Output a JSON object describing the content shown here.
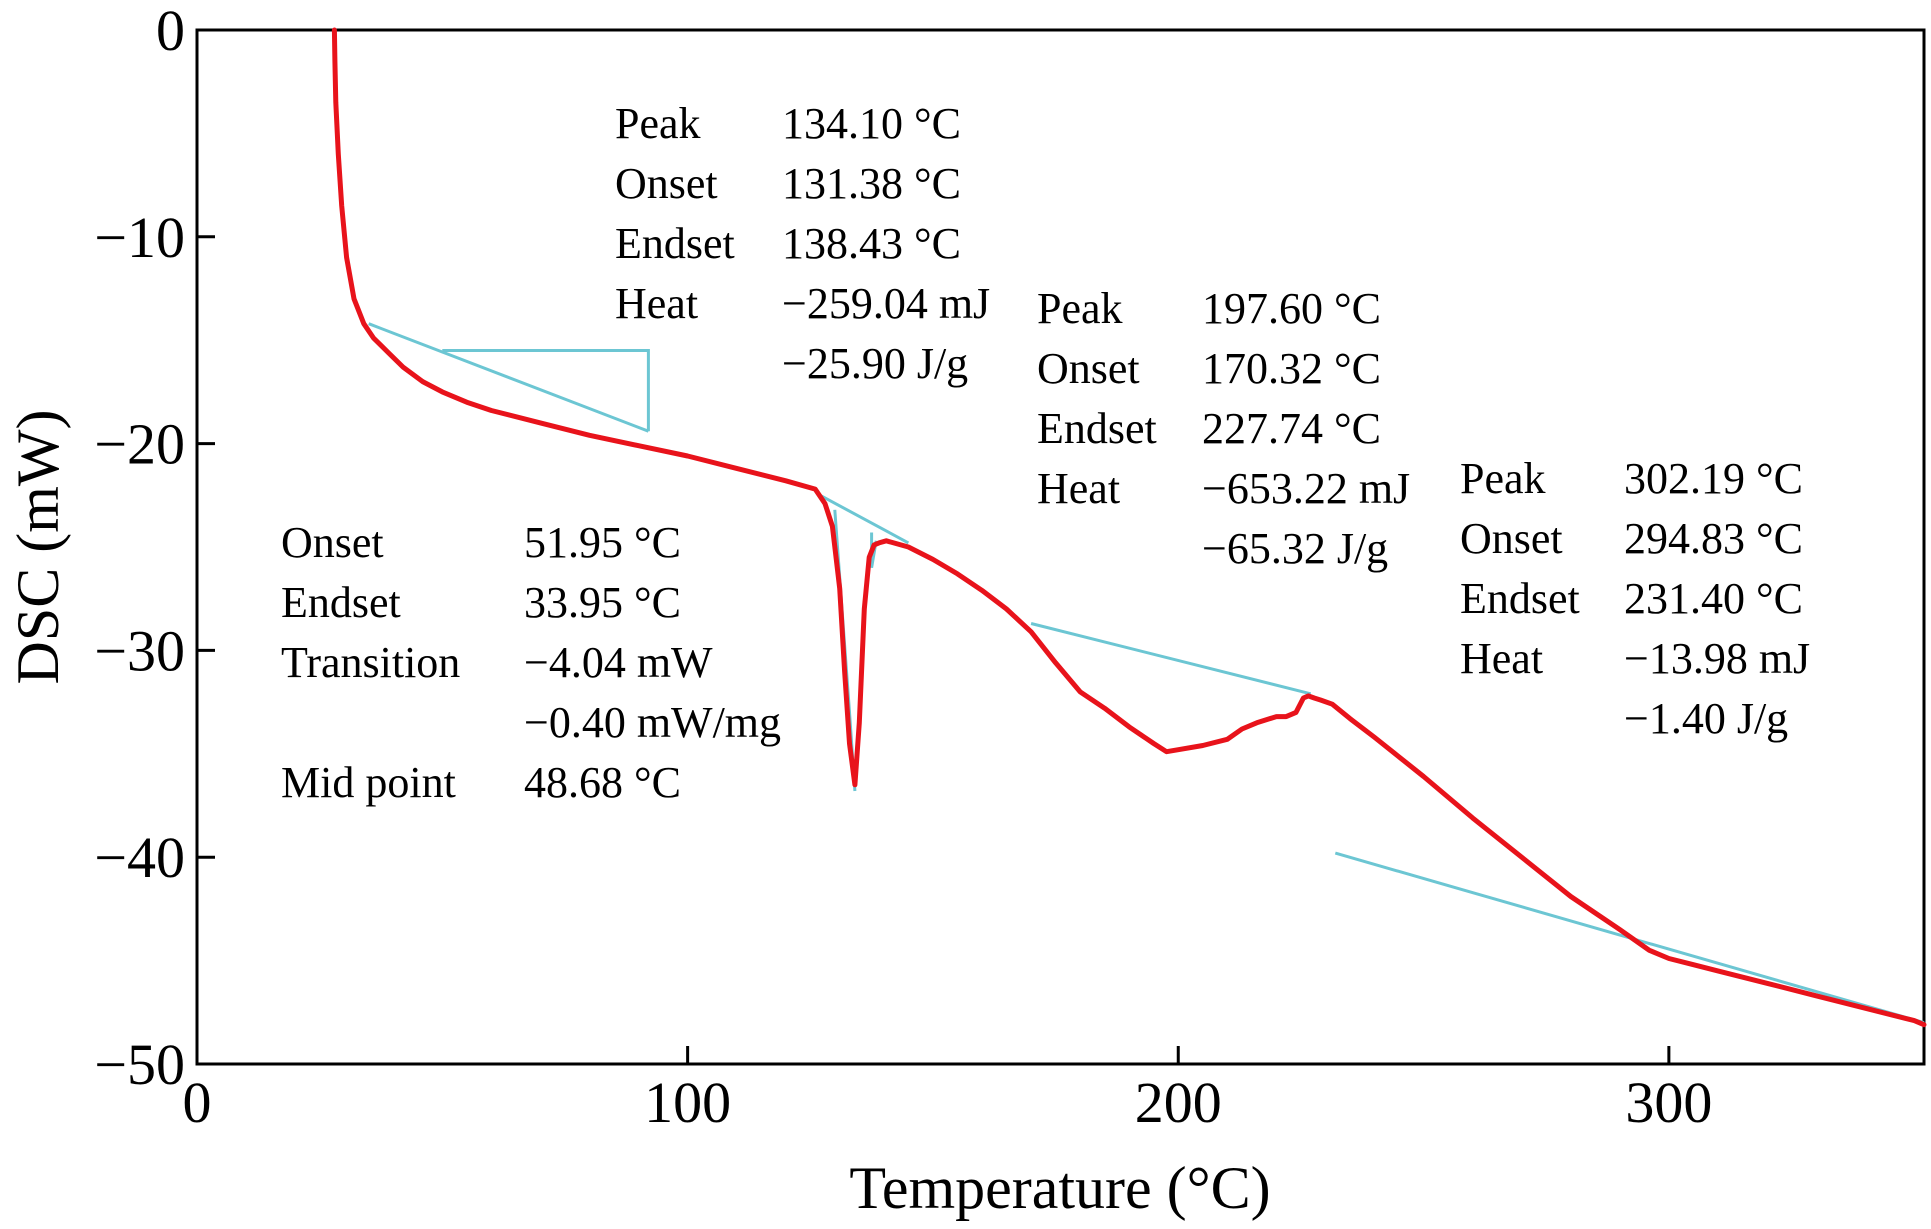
{
  "chart_data": {
    "type": "line",
    "title": "",
    "xlabel": "Temperature (°C)",
    "ylabel": "DSC (mW)",
    "xlim": [
      0,
      352
    ],
    "ylim": [
      -50,
      0
    ],
    "x_ticks": [
      0,
      100,
      200,
      300
    ],
    "y_ticks": [
      0,
      -10,
      -20,
      -30,
      -40,
      -50
    ],
    "x_tick_labels": [
      "0",
      "100",
      "200",
      "300"
    ],
    "y_tick_labels": [
      "0",
      "−10",
      "−20",
      "−30",
      "−40",
      "−50"
    ],
    "grid": false,
    "legend": "none",
    "colors": {
      "curve": "#e8131b",
      "baseline": "#6cc6d3",
      "axes": "#000000"
    },
    "series": [
      {
        "x": [
          28.0,
          28.1,
          28.3,
          28.8,
          29.5,
          30.5,
          32.0,
          34.0,
          36.0,
          39.0,
          42.0,
          46.0,
          50.0,
          55.0,
          60.0,
          70.0,
          80.0,
          90.0,
          100.0,
          110.0,
          120.0,
          126.0,
          128.0,
          129.5,
          131.0,
          132.0,
          133.0,
          134.1,
          135.0,
          136.0,
          137.0,
          138.0,
          139.0,
          140.5,
          142.0,
          145.0,
          150.0,
          155.0,
          160.0,
          165.0,
          170.0,
          175.0,
          180.0,
          185.0,
          190.0,
          195.0,
          197.6,
          200.0,
          205.0,
          210.0,
          213.0,
          216.0,
          220.0,
          222.0,
          224.0,
          225.5,
          226.5,
          227.7,
          229.0,
          231.4,
          235.0,
          240.0,
          250.0,
          260.0,
          270.0,
          280.0,
          290.0,
          296.0,
          300.0,
          305.0,
          310.0,
          320.0,
          330.0,
          340.0,
          350.0,
          352.0
        ],
        "y": [
          0.0,
          -1.5,
          -3.5,
          -6.0,
          -8.5,
          -11.0,
          -13.0,
          -14.2,
          -14.9,
          -15.6,
          -16.3,
          -17.0,
          -17.5,
          -18.0,
          -18.4,
          -19.0,
          -19.6,
          -20.1,
          -20.6,
          -21.2,
          -21.8,
          -22.2,
          -22.9,
          -24.0,
          -27.0,
          -31.0,
          -34.5,
          -36.5,
          -33.5,
          -28.0,
          -25.5,
          -24.9,
          -24.8,
          -24.7,
          -24.8,
          -25.0,
          -25.6,
          -26.3,
          -27.1,
          -28.0,
          -29.1,
          -30.6,
          -32.0,
          -32.8,
          -33.7,
          -34.5,
          -34.9,
          -34.8,
          -34.6,
          -34.3,
          -33.8,
          -33.5,
          -33.2,
          -33.2,
          -33.0,
          -32.3,
          -32.2,
          -32.3,
          -32.4,
          -32.6,
          -33.3,
          -34.2,
          -36.1,
          -38.1,
          -40.0,
          -41.9,
          -43.5,
          -44.5,
          -44.9,
          -45.2,
          -45.5,
          -46.1,
          -46.7,
          -47.3,
          -47.9,
          -48.1
        ]
      }
    ],
    "tangent_lines": [
      {
        "x": [
          35,
          92
        ],
        "y": [
          -14.2,
          -19.4
        ]
      },
      {
        "x": [
          50,
          92,
          92
        ],
        "y": [
          -15.5,
          -15.5,
          -19.4
        ]
      },
      {
        "x": [
          127,
          145
        ],
        "y": [
          -22.5,
          -24.8
        ]
      },
      {
        "x": [
          130,
          133,
          134.1
        ],
        "y": [
          -23.2,
          -33,
          -36.8
        ]
      },
      {
        "x": [
          137.5,
          137.5,
          138.43
        ],
        "y": [
          -24.3,
          -26.0,
          -24.7
        ]
      },
      {
        "x": [
          170,
          227
        ],
        "y": [
          -28.7,
          -32.1
        ]
      },
      {
        "x": [
          232,
          352
        ],
        "y": [
          -39.8,
          -48.0
        ]
      }
    ]
  },
  "annotations": [
    {
      "rows": [
        {
          "label": "Peak",
          "value": "134.10 °C"
        },
        {
          "label": "Onset",
          "value": "131.38 °C"
        },
        {
          "label": "Endset",
          "value": "138.43 °C"
        },
        {
          "label": "Heat",
          "value": "−259.04 mJ"
        },
        {
          "label": "",
          "value": "−25.90 J/g"
        }
      ]
    },
    {
      "rows": [
        {
          "label": "Peak",
          "value": "197.60 °C"
        },
        {
          "label": "Onset",
          "value": "170.32 °C"
        },
        {
          "label": "Endset",
          "value": "227.74 °C"
        },
        {
          "label": "Heat",
          "value": "−653.22 mJ"
        },
        {
          "label": "",
          "value": "−65.32 J/g"
        }
      ]
    },
    {
      "rows": [
        {
          "label": "Peak",
          "value": "302.19 °C"
        },
        {
          "label": "Onset",
          "value": "294.83 °C"
        },
        {
          "label": "Endset",
          "value": "231.40 °C"
        },
        {
          "label": "Heat",
          "value": "−13.98 mJ"
        },
        {
          "label": "",
          "value": "−1.40 J/g"
        }
      ]
    },
    {
      "rows": [
        {
          "label": "Onset",
          "value": "51.95 °C"
        },
        {
          "label": "Endset",
          "value": "33.95 °C"
        },
        {
          "label": "Transition",
          "value": "−4.04 mW"
        },
        {
          "label": "",
          "value": "−0.40 mW/mg"
        },
        {
          "label": "Mid point",
          "value": "48.68 °C"
        }
      ]
    }
  ]
}
